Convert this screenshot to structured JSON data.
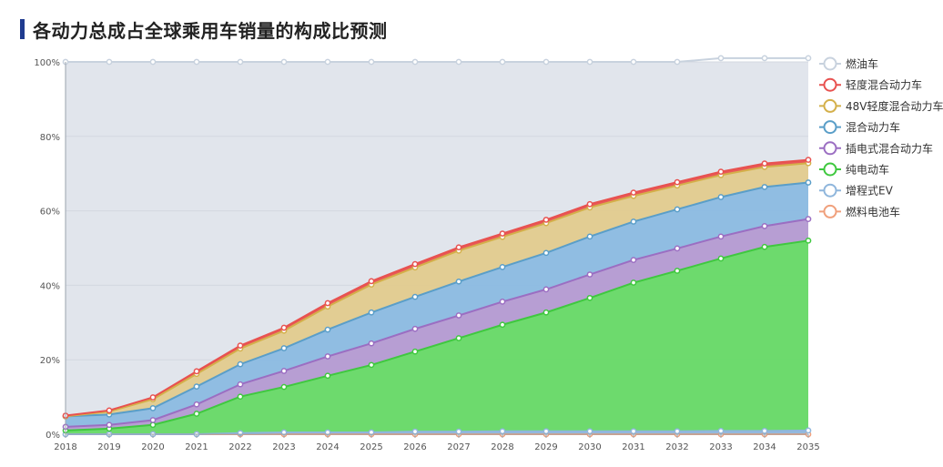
{
  "chart_data": {
    "type": "area",
    "stacked": true,
    "title": "各动力总成占全球乘用车销量的构成比预测",
    "xlabel": "",
    "ylabel": "",
    "x": [
      "2018",
      "2019",
      "2020",
      "2021",
      "2022",
      "2023",
      "2024",
      "2025",
      "2026",
      "2027",
      "2028",
      "2029",
      "2030",
      "2031",
      "2032",
      "2033",
      "2034",
      "2035"
    ],
    "ylim": [
      0,
      100
    ],
    "yticks": [
      "0%",
      "20%",
      "40%",
      "60%",
      "80%",
      "100%"
    ],
    "grid": true,
    "legend_position": "right",
    "background_color": "#e1e5ec",
    "series": [
      {
        "name": "燃料电池车",
        "color": "#f0a07c",
        "values": [
          0,
          0,
          0,
          0,
          0,
          0,
          0,
          0,
          0,
          0,
          0,
          0,
          0,
          0,
          0,
          0,
          0,
          0
        ]
      },
      {
        "name": "增程式EV",
        "color": "#8fb6dc",
        "values": [
          0,
          0,
          0,
          0,
          0.3,
          0.5,
          0.5,
          0.5,
          0.7,
          0.7,
          0.8,
          0.8,
          0.8,
          0.8,
          0.8,
          0.9,
          0.9,
          1
        ]
      },
      {
        "name": "纯电动车",
        "color": "#3fc83f",
        "fill": "#66d966",
        "values": [
          1,
          1.5,
          2.5,
          5.5,
          9.8,
          12.2,
          15.2,
          18.1,
          21.5,
          25.1,
          28.6,
          31.9,
          35.8,
          39.9,
          43.1,
          46.3,
          49.4,
          51
        ]
      },
      {
        "name": "插电式混合动力车",
        "color": "#9b6ec2",
        "fill": "#b49ad2",
        "values": [
          1,
          1,
          1.3,
          2.5,
          3.3,
          4.3,
          5.2,
          5.8,
          6.1,
          6.1,
          6.2,
          6.2,
          6.3,
          6.1,
          6,
          5.9,
          5.6,
          5.8
        ]
      },
      {
        "name": "混合动力车",
        "color": "#5a9ec8",
        "fill": "#8bbbe2",
        "values": [
          2.8,
          2.8,
          3.2,
          4.8,
          5.4,
          6.1,
          7.2,
          8.3,
          8.6,
          9.1,
          9.3,
          9.8,
          10.2,
          10.3,
          10.5,
          10.6,
          10.5,
          9.8
        ]
      },
      {
        "name": "48V轻度混合动力车",
        "color": "#d4b04a",
        "fill": "#e2cb8e",
        "values": [
          0,
          0.8,
          2.4,
          3.4,
          4.2,
          4.7,
          6.2,
          7.5,
          7.9,
          8.3,
          8.1,
          8,
          7.8,
          6.9,
          6.4,
          5.9,
          5.4,
          5.2
        ]
      },
      {
        "name": "轻度混合动力车",
        "color": "#e8514f",
        "values": [
          0.2,
          0.3,
          0.5,
          0.7,
          0.8,
          0.8,
          0.9,
          0.9,
          0.9,
          0.9,
          0.9,
          0.9,
          0.9,
          0.9,
          0.9,
          0.9,
          0.9,
          0.9
        ]
      },
      {
        "name": "燃油车",
        "color": "#c8d2de",
        "values": [
          95,
          93.6,
          90.1,
          83.1,
          76.2,
          71.4,
          64.8,
          58.9,
          54.3,
          49.8,
          46.1,
          42.4,
          38.2,
          35.1,
          32.3,
          30.5,
          28.3,
          27.3
        ]
      }
    ]
  }
}
